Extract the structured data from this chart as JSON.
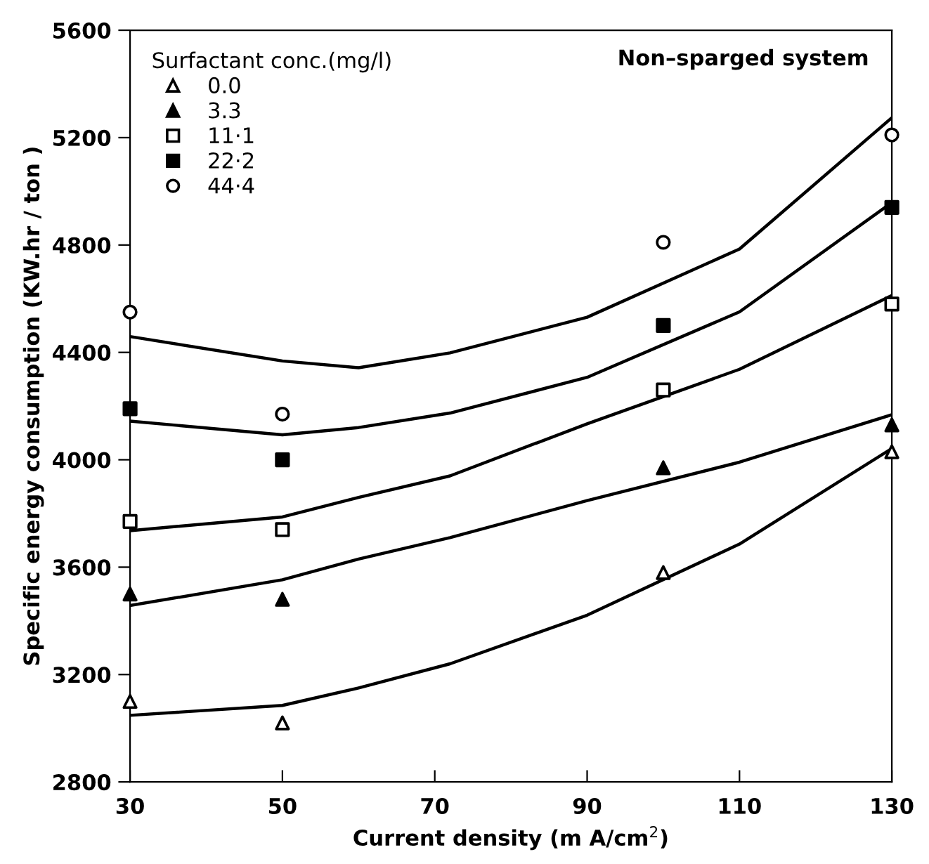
{
  "chart_data": {
    "type": "scatter",
    "xlabel": "Current density (m A/cm$^{2}$)",
    "ylabel": "Specific energy consumption (KW.hr / ton )",
    "legend_title": "Surfactant conc.(mg/l)",
    "legend": "top left",
    "grid": false,
    "annotations": [
      "Non–sparged system"
    ],
    "xlim": [
      30,
      130
    ],
    "xticks": [
      30,
      50,
      70,
      90,
      110,
      130
    ],
    "ylim": [
      2800,
      5600
    ],
    "yticks": [
      2800,
      3200,
      3600,
      4000,
      4400,
      4800,
      5200,
      5600
    ],
    "series": [
      {
        "name": "0.0",
        "marker": "triangle",
        "color": "#ffffff",
        "x": [
          30,
          50,
          100,
          130
        ],
        "values": [
          3100,
          3020,
          3580,
          4030
        ]
      },
      {
        "name": "3.3",
        "marker": "triangle",
        "color": "#000000",
        "x": [
          30,
          50,
          100,
          130
        ],
        "values": [
          3500,
          3480,
          3970,
          4130
        ]
      },
      {
        "name": "11·1",
        "marker": "square",
        "color": "#ffffff",
        "x": [
          30,
          50,
          100,
          130
        ],
        "values": [
          3770,
          3740,
          4260,
          4580
        ]
      },
      {
        "name": "22·2",
        "marker": "square",
        "color": "#000000",
        "x": [
          30,
          50,
          100,
          130
        ],
        "values": [
          4190,
          4000,
          4500,
          4940
        ]
      },
      {
        "name": "44·4",
        "marker": "circle",
        "color": "#ffffff",
        "x": [
          30,
          50,
          100,
          130
        ],
        "values": [
          4550,
          4170,
          4810,
          5210
        ]
      },
      {
        "type": "line",
        "color": "#000000",
        "x": [
          30,
          50,
          60,
          72,
          90,
          110,
          130
        ],
        "values": [
          3048,
          3085,
          3150,
          3240,
          3421,
          3686,
          4042
        ]
      },
      {
        "type": "line",
        "color": "#000000",
        "x": [
          30,
          50,
          60,
          72,
          90,
          110,
          130
        ],
        "values": [
          3457,
          3553,
          3630,
          3710,
          3848,
          3991,
          4168
        ]
      },
      {
        "type": "line",
        "color": "#000000",
        "x": [
          30,
          50,
          60,
          72,
          90,
          110,
          130
        ],
        "values": [
          3736,
          3787,
          3860,
          3940,
          4134,
          4337,
          4612
        ]
      },
      {
        "type": "line",
        "color": "#000000",
        "x": [
          30,
          50,
          60,
          72,
          90,
          110,
          130
        ],
        "values": [
          4144,
          4093,
          4120,
          4174,
          4307,
          4551,
          4958
        ]
      },
      {
        "type": "line",
        "color": "#000000",
        "x": [
          30,
          50,
          60,
          72,
          90,
          110,
          130
        ],
        "values": [
          4459,
          4368,
          4343,
          4398,
          4531,
          4785,
          5274
        ]
      }
    ]
  }
}
